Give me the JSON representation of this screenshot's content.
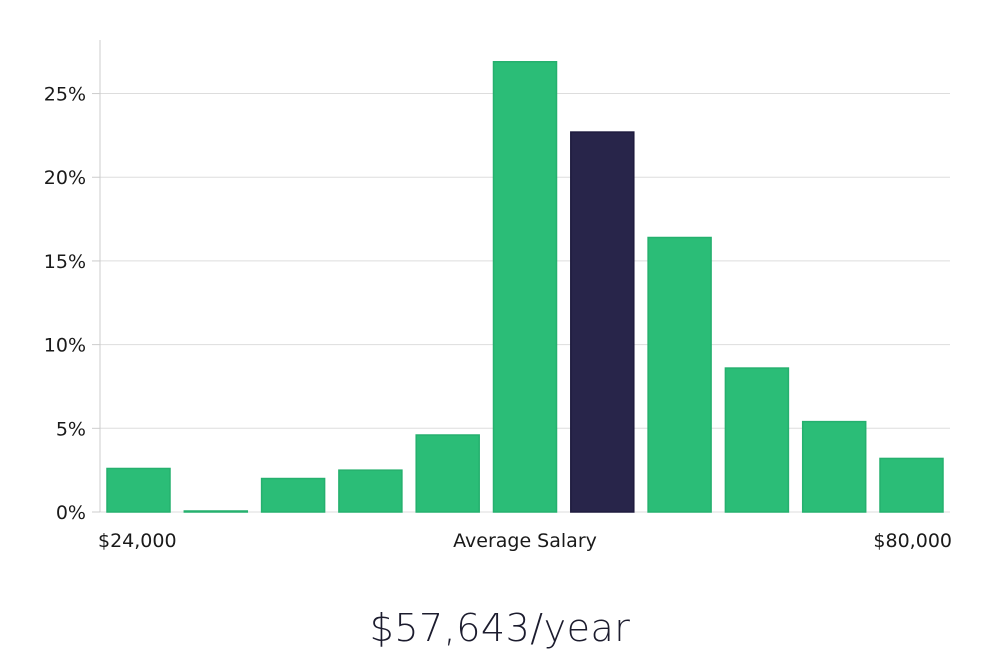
{
  "chart_data": {
    "type": "bar",
    "title": "",
    "xlabel": "Average Salary",
    "ylabel": "",
    "ylim": [
      0,
      28.2
    ],
    "yticks": [
      0,
      5,
      10,
      15,
      20,
      25
    ],
    "ytick_labels": [
      "0%",
      "5%",
      "10%",
      "15%",
      "20%",
      "25%"
    ],
    "x_start_label": "$24,000",
    "x_end_label": "$80,000",
    "values": [
      2.6,
      0.05,
      2.0,
      2.5,
      4.6,
      26.9,
      22.7,
      16.4,
      8.6,
      5.4,
      3.2
    ],
    "highlight_index": 6,
    "colors": {
      "bar": "#2bbd77",
      "highlight": "#28254a",
      "grid": "#dddddd",
      "axis": "#cccccc"
    }
  },
  "summary": {
    "salary_label": "$57,643/year"
  }
}
